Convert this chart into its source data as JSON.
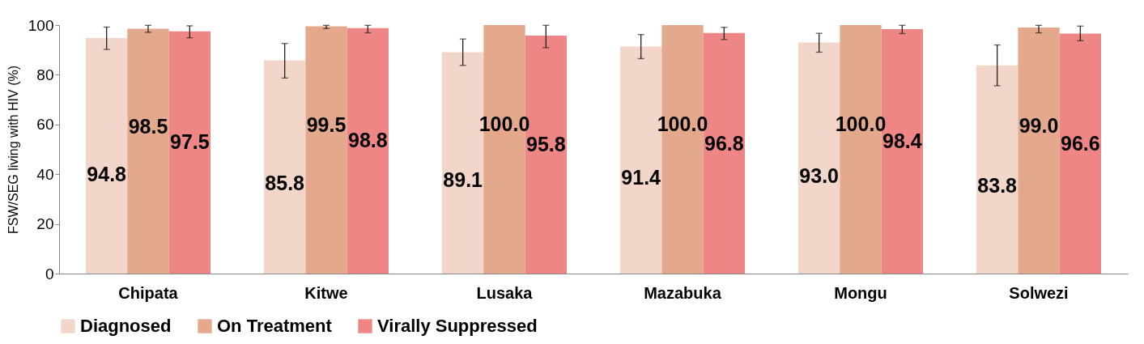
{
  "chart_data": {
    "type": "bar",
    "ylabel": "FSW/SEG living with HIV (%)",
    "categories": [
      "Chipata",
      "Kitwe",
      "Lusaka",
      "Mazabuka",
      "Mongu",
      "Solwezi"
    ],
    "series": [
      {
        "name": "Diagnosed",
        "color": "#f2d6ca",
        "values": [
          94.8,
          85.8,
          89.1,
          91.4,
          93.0,
          83.8
        ],
        "value_labels": [
          "94.8",
          "85.8",
          "89.1",
          "91.4",
          "93.0",
          "83.8"
        ],
        "errors": [
          [
            90.2,
            99.2
          ],
          [
            78.7,
            92.6
          ],
          [
            83.8,
            94.4
          ],
          [
            86.5,
            96.2
          ],
          [
            89.1,
            96.7
          ],
          [
            75.6,
            92.0
          ]
        ]
      },
      {
        "name": "On Treatment",
        "color": "#e4a98c",
        "values": [
          98.5,
          99.5,
          100.0,
          100.0,
          100.0,
          99.0
        ],
        "value_labels": [
          "98.5",
          "99.5",
          "100.0",
          "100.0",
          "100.0",
          "99.0"
        ],
        "errors": [
          [
            97.1,
            99.9
          ],
          [
            98.6,
            99.9
          ],
          null,
          null,
          null,
          [
            96.9,
            99.9
          ]
        ]
      },
      {
        "name": "Virally Suppressed",
        "color": "#ee8686",
        "values": [
          97.5,
          98.8,
          95.8,
          96.8,
          98.4,
          96.6
        ],
        "value_labels": [
          "97.5",
          "98.8",
          "95.8",
          "96.8",
          "98.4",
          "96.6"
        ],
        "errors": [
          [
            94.9,
            99.7
          ],
          [
            96.9,
            99.9
          ],
          [
            90.9,
            99.9
          ],
          [
            94.2,
            99.1
          ],
          [
            96.6,
            99.9
          ],
          [
            93.7,
            99.6
          ]
        ]
      }
    ],
    "ylim": [
      0,
      100
    ],
    "yticks": [
      0,
      20,
      40,
      60,
      80,
      100
    ],
    "grid": false,
    "legend": "bottom"
  }
}
